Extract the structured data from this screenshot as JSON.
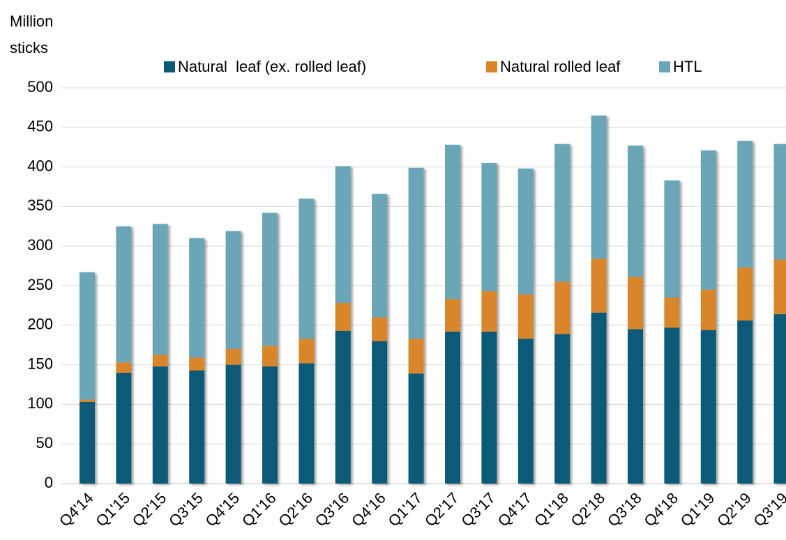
{
  "chart_data": {
    "type": "stacked_bar",
    "y_label": "Million sticks",
    "categories": [
      "Q4'14",
      "Q1'15",
      "Q2'15",
      "Q3'15",
      "Q4'15",
      "Q1'16",
      "Q2'16",
      "Q3'16",
      "Q4'16",
      "Q1'17",
      "Q2'17",
      "Q3'17",
      "Q4'17",
      "Q1'18",
      "Q2'18",
      "Q3'18",
      "Q4'18",
      "Q1'19",
      "Q2'19",
      "Q3'19"
    ],
    "series": [
      {
        "name": "Natural  leaf (ex. rolled leaf)",
        "color": "#0b5a78",
        "values": [
          103,
          140,
          148,
          143,
          150,
          148,
          152,
          193,
          180,
          139,
          192,
          192,
          183,
          189,
          216,
          195,
          197,
          194,
          206,
          214
        ]
      },
      {
        "name": "Natural rolled leaf",
        "color": "#d9862a",
        "values": [
          3,
          13,
          15,
          16,
          20,
          26,
          31,
          35,
          30,
          44,
          41,
          51,
          56,
          66,
          68,
          66,
          38,
          51,
          67,
          69
        ]
      },
      {
        "name": "HTL",
        "color": "#6aa5b8",
        "values": [
          161,
          172,
          165,
          151,
          149,
          168,
          177,
          173,
          156,
          216,
          195,
          162,
          159,
          174,
          181,
          166,
          148,
          176,
          160,
          146
        ]
      }
    ],
    "ylim": [
      0,
      500
    ],
    "yticks": [
      0,
      50,
      100,
      150,
      200,
      250,
      300,
      350,
      400,
      450,
      500
    ],
    "grid": true,
    "legend": "top"
  }
}
